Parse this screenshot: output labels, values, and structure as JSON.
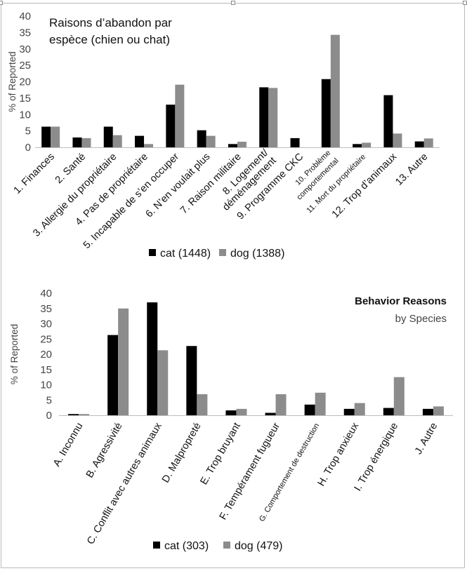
{
  "chart_data": [
    {
      "type": "bar",
      "title_lines": [
        "Raisons d’abandon par",
        "espèce (chien ou chat)"
      ],
      "ylabel": "% of Reported",
      "ylim": [
        0,
        40
      ],
      "yticks": [
        0,
        5,
        10,
        15,
        20,
        25,
        30,
        35,
        40
      ],
      "categories": [
        "1. Finances",
        "2. Santé",
        "3. Allergie du propriétaire",
        "4. Pas de propriétaire",
        "5. Incapable de s’en occuper",
        "6. N’en voulait plus",
        "7. Raison militaire",
        "8. Logement/ déménagement",
        "9. Programme CKC",
        "10. Problème comportemental",
        "11. Mort du propriétaire",
        "12. Trop d’animaux",
        "13. Autre"
      ],
      "category_lines": [
        [
          "1. Finances"
        ],
        [
          "2. Santé"
        ],
        [
          "3. Allergie du propriétaire"
        ],
        [
          "4. Pas de propriétaire"
        ],
        [
          "5. Incapable de s’en occuper"
        ],
        [
          "6. N’en voulait plus"
        ],
        [
          "7. Raison militaire"
        ],
        [
          "8. Logement/",
          "déménagement"
        ],
        [
          "9. Programme CKC"
        ],
        [
          "10. Problème",
          "comportemental"
        ],
        [
          "11. Mort du propriétaire"
        ],
        [
          "12. Trop d’animaux"
        ],
        [
          "13. Autre"
        ]
      ],
      "small_label_indices": [
        9,
        10
      ],
      "series": [
        {
          "name": "cat (1448)",
          "color": "#000000",
          "values": [
            6.3,
            3.0,
            6.3,
            3.5,
            13.0,
            5.2,
            1.0,
            18.3,
            2.8,
            20.8,
            1.0,
            15.9,
            1.8
          ]
        },
        {
          "name": "dog (1388)",
          "color": "#8c8c8c",
          "values": [
            6.3,
            2.8,
            3.7,
            1.0,
            19.1,
            3.5,
            1.7,
            18.1,
            0,
            34.3,
            1.4,
            4.2,
            2.7
          ]
        }
      ],
      "grid": false,
      "legend_position": "bottom"
    },
    {
      "type": "bar",
      "title_bold": "Behavior Reasons",
      "title_rest": "by Species",
      "ylabel": "% of Reported",
      "ylim": [
        0,
        40
      ],
      "yticks": [
        0,
        5,
        10,
        15,
        20,
        25,
        30,
        35,
        40
      ],
      "categories": [
        "A. Inconnu",
        "B. Agressivité",
        "C. Conflit avec autres animaux",
        "D. Malpropreté",
        "E. Trop bruyant",
        "F. Tempérament fugueur",
        "G. Comportement de destruction",
        "H. Trop anxieux",
        "I. Trop énergique",
        "J. Autre"
      ],
      "small_label_indices": [
        6
      ],
      "series": [
        {
          "name": "cat (303)",
          "color": "#000000",
          "values": [
            0.4,
            26.3,
            37.0,
            22.7,
            1.6,
            0.8,
            3.5,
            2.1,
            2.4,
            2.1
          ]
        },
        {
          "name": "dog (479)",
          "color": "#8c8c8c",
          "values": [
            0.4,
            35.0,
            21.3,
            6.9,
            2.1,
            6.9,
            7.4,
            4.0,
            12.5,
            2.9
          ]
        }
      ],
      "grid": false,
      "legend_position": "bottom"
    }
  ]
}
